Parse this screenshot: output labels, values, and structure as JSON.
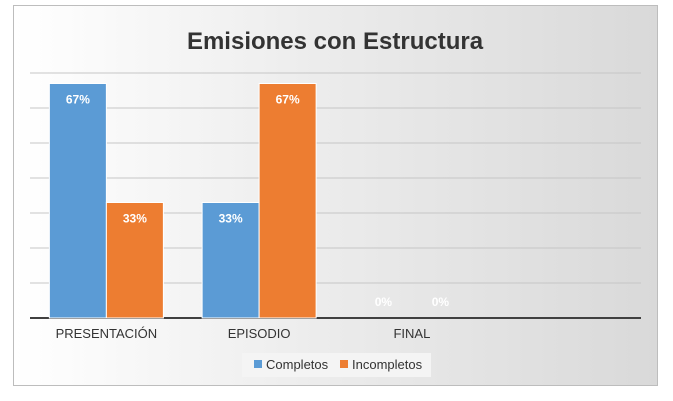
{
  "chart_data": {
    "type": "bar",
    "title": "Emisiones con Estructura",
    "categories": [
      "PRESENTACIÓN",
      "EPISODIO",
      "FINAL"
    ],
    "series": [
      {
        "name": "Completos",
        "values": [
          67,
          33,
          0
        ],
        "labels": [
          "67%",
          "33%",
          "0%"
        ],
        "color": "#5b9bd5"
      },
      {
        "name": "Incompletos",
        "values": [
          33,
          67,
          0
        ],
        "labels": [
          "33%",
          "67%",
          "0%"
        ],
        "color": "#ed7d31"
      }
    ],
    "ylim": [
      0,
      70
    ],
    "grid": true,
    "legend_position": "bottom",
    "background": "#e8e8e8"
  }
}
